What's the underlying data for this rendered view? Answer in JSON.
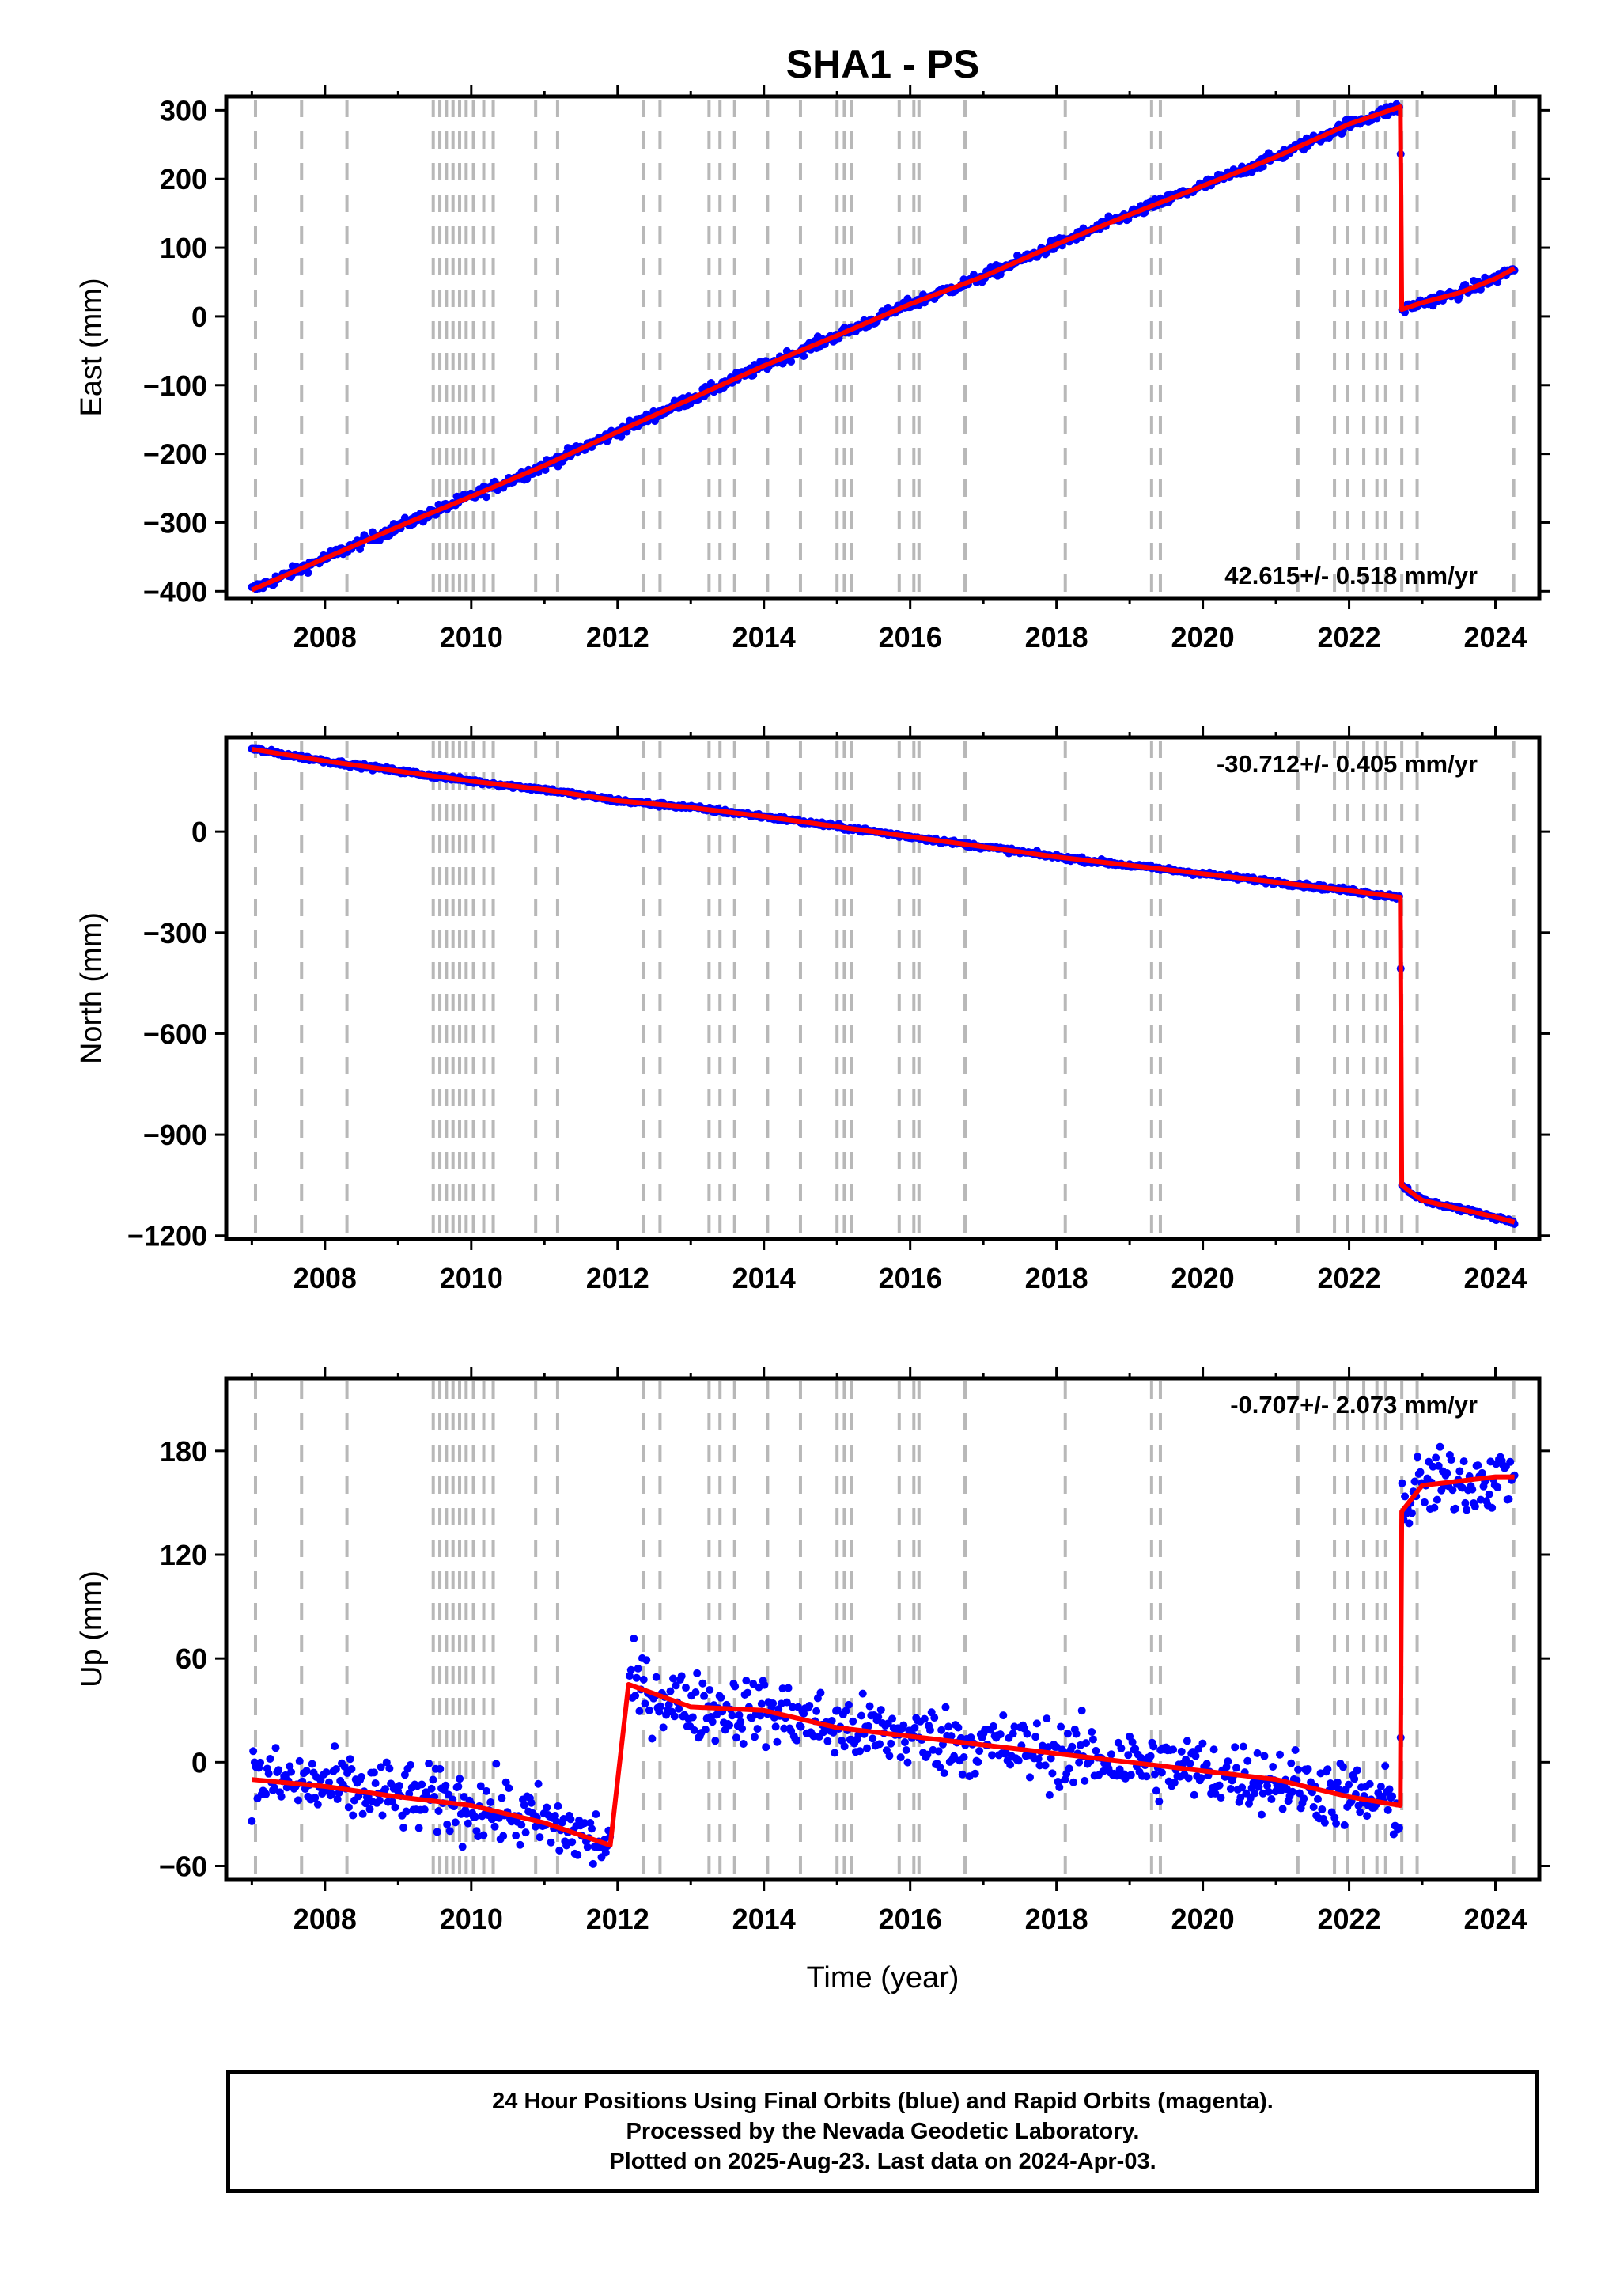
{
  "figure": {
    "title": "SHA1 - PS",
    "xlabel": "Time (year)"
  },
  "colors": {
    "points": "#0000ff",
    "model": "#ff0000",
    "breaks": "#b8b8b8",
    "axis": "#000000"
  },
  "break_epochs": [
    2007.05,
    2007.68,
    2008.3,
    2009.48,
    2009.57,
    2009.66,
    2009.75,
    2009.84,
    2009.93,
    2010.03,
    2010.17,
    2010.3,
    2010.88,
    2011.18,
    2012.35,
    2012.58,
    2013.25,
    2013.4,
    2013.6,
    2014.05,
    2014.5,
    2015.0,
    2015.1,
    2015.2,
    2015.85,
    2016.05,
    2016.12,
    2016.75,
    2018.12,
    2019.3,
    2019.42,
    2021.3,
    2021.8,
    2021.98,
    2022.2,
    2022.38,
    2022.5,
    2022.72,
    2022.93,
    2024.25
  ],
  "footer": {
    "line1": "24 Hour Positions Using Final Orbits (blue) and Rapid Orbits (magenta).",
    "line2": "Processed by the Nevada Geodetic Laboratory.",
    "line3": "Plotted on 2025-Aug-23. Last data on 2024-Apr-03."
  },
  "chart_data": [
    {
      "type": "scatter",
      "component": "East",
      "ylabel": "East (mm)",
      "rate_label": "42.615+/- 0.518 mm/yr",
      "xlim": [
        2006.65,
        2024.6
      ],
      "ylim": [
        -410,
        320
      ],
      "xticks": [
        2008,
        2010,
        2012,
        2014,
        2016,
        2018,
        2020,
        2022,
        2024
      ],
      "yticks": [
        -400,
        -300,
        -200,
        -100,
        0,
        100,
        200,
        300
      ],
      "ytick_labels": [
        "−400",
        "−300",
        "−200",
        "−100",
        "0",
        "100",
        "200",
        "300"
      ],
      "series": [
        {
          "x": [
            2007.0,
            2008.0,
            2009.0,
            2010.0,
            2011.0,
            2012.0,
            2013.0,
            2014.0,
            2015.0,
            2016.0,
            2017.0,
            2018.0,
            2019.0,
            2020.0,
            2021.0,
            2022.0,
            2022.7,
            2022.72,
            2023.0,
            2023.5,
            2024.0,
            2024.26
          ],
          "y": [
            -398,
            -352,
            -306,
            -262,
            -217,
            -168,
            -120,
            -72,
            -28,
            18,
            58,
            105,
            148,
            190,
            232,
            280,
            305,
            10,
            20,
            34,
            55,
            70
          ]
        }
      ]
    },
    {
      "type": "scatter",
      "component": "North",
      "ylabel": "North (mm)",
      "rate_label": "-30.712+/- 0.405 mm/yr",
      "xlim": [
        2006.65,
        2024.6
      ],
      "ylim": [
        -1210,
        280
      ],
      "xticks": [
        2008,
        2010,
        2012,
        2014,
        2016,
        2018,
        2020,
        2022,
        2024
      ],
      "yticks": [
        -1200,
        -900,
        -600,
        -300,
        0
      ],
      "ytick_labels": [
        "−1200",
        "−900",
        "−600",
        "−300",
        "0"
      ],
      "series": [
        {
          "x": [
            2007.0,
            2008.0,
            2009.0,
            2010.0,
            2011.0,
            2012.0,
            2013.0,
            2014.0,
            2015.0,
            2016.0,
            2017.0,
            2018.0,
            2019.0,
            2020.0,
            2021.0,
            2022.0,
            2022.7,
            2022.72,
            2022.9,
            2023.0,
            2024.0,
            2024.26
          ],
          "y": [
            245,
            210,
            180,
            150,
            125,
            92,
            72,
            45,
            15,
            -15,
            -45,
            -75,
            -100,
            -125,
            -150,
            -175,
            -195,
            -1050,
            -1080,
            -1095,
            -1145,
            -1160
          ]
        }
      ]
    },
    {
      "type": "scatter",
      "component": "Up",
      "ylabel": "Up (mm)",
      "rate_label": "-0.707+/- 2.073 mm/yr",
      "xlim": [
        2006.65,
        2024.6
      ],
      "ylim": [
        -68,
        222
      ],
      "xticks": [
        2008,
        2010,
        2012,
        2014,
        2016,
        2018,
        2020,
        2022,
        2024
      ],
      "yticks": [
        -60,
        0,
        60,
        120,
        180
      ],
      "ytick_labels": [
        "−60",
        "0",
        "60",
        "120",
        "180"
      ],
      "series": [
        {
          "x": [
            2007.0,
            2008.0,
            2009.0,
            2010.0,
            2011.0,
            2011.9,
            2012.15,
            2013.0,
            2014.0,
            2015.0,
            2016.0,
            2017.0,
            2018.0,
            2019.0,
            2020.0,
            2021.0,
            2022.0,
            2022.7,
            2022.72,
            2023.0,
            2024.0,
            2024.26
          ],
          "y": [
            -10,
            -14,
            -20,
            -25,
            -35,
            -48,
            45,
            32,
            30,
            20,
            15,
            10,
            5,
            0,
            -5,
            -10,
            -20,
            -25,
            145,
            160,
            165,
            165
          ]
        }
      ]
    }
  ]
}
